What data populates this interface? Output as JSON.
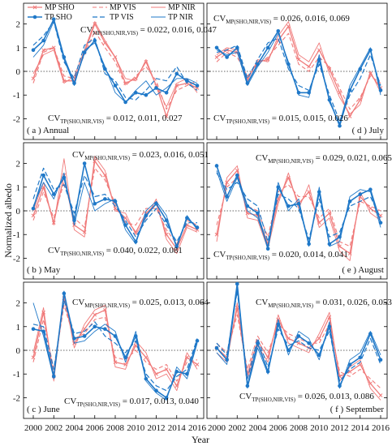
{
  "figure": {
    "ylabel": "Normalized albedo",
    "xlabel": "Year",
    "legend": {
      "mp_sho": "MP SHO",
      "mp_vis": "MP VIS",
      "mp_nir": "MP NIR",
      "tp_sho": "TP SHO",
      "tp_vis": "TP VIS",
      "tp_nir": "TP NIR"
    },
    "x_ticks": [
      "2000",
      "2002",
      "2004",
      "2006",
      "2008",
      "2010",
      "2012",
      "2014",
      "2016"
    ],
    "y_ticks": [
      "-2",
      "-1",
      "0",
      "1",
      "2"
    ],
    "colors": {
      "mp": "#f07b7b",
      "tp": "#1f78c8",
      "zero_line": "#333333"
    },
    "panels": [
      {
        "label": "( a ) Annual",
        "cv_mp": "= 0.022, 0.016, 0.047",
        "cv_tp": "= 0.012, 0.011, 0.027"
      },
      {
        "label": "( d ) July",
        "cv_mp": "= 0.026, 0.016, 0.069",
        "cv_tp": "= 0.015, 0.015, 0.026"
      },
      {
        "label": "( b ) May",
        "cv_mp": "= 0.023, 0.016, 0.051",
        "cv_tp": "= 0.040, 0.022, 0.081"
      },
      {
        "label": "( e ) August",
        "cv_mp": "= 0.029, 0.021, 0.065",
        "cv_tp": "= 0.020, 0.014, 0.041"
      },
      {
        "label": "( c ) June",
        "cv_mp": "= 0.025, 0.013, 0.064",
        "cv_tp": "= 0.017, 0.013, 0.040"
      },
      {
        "label": "( f ) September",
        "cv_mp": "= 0.031, 0.026, 0.053",
        "cv_tp": "= 0.026, 0.013, 0.086"
      }
    ]
  },
  "chart_data": [
    {
      "type": "line",
      "title": "( a ) Annual",
      "x": [
        2000,
        2001,
        2002,
        2003,
        2004,
        2005,
        2006,
        2007,
        2008,
        2009,
        2010,
        2011,
        2012,
        2013,
        2014,
        2015,
        2016
      ],
      "ylim": [
        -2.6,
        2.6
      ],
      "series": [
        {
          "name": "MP SHO",
          "values": [
            -0.3,
            0.9,
            1.0,
            -0.4,
            -0.4,
            0.8,
            2.0,
            1.2,
            0.6,
            -0.5,
            -0.3,
            0.4,
            -0.6,
            -1.9,
            -0.6,
            -0.5,
            -0.7
          ]
        },
        {
          "name": "MP VIS",
          "values": [
            -0.5,
            0.8,
            1.0,
            -0.2,
            -0.3,
            0.7,
            1.7,
            1.0,
            0.4,
            -0.6,
            -0.2,
            0.2,
            -0.4,
            -1.6,
            -0.8,
            -0.6,
            -0.4
          ]
        },
        {
          "name": "MP NIR",
          "values": [
            -0.1,
            0.7,
            0.9,
            -0.5,
            -0.2,
            0.9,
            2.1,
            1.3,
            0.6,
            -0.3,
            -0.4,
            0.5,
            -0.6,
            -1.5,
            -0.5,
            -0.3,
            -0.9
          ]
        },
        {
          "name": "TP SHO",
          "values": [
            0.9,
            1.3,
            2.2,
            0.6,
            -0.5,
            0.8,
            1.3,
            0.1,
            -0.6,
            -1.3,
            -0.9,
            -1.0,
            -0.7,
            -0.9,
            -0.1,
            -0.4,
            -0.6
          ]
        },
        {
          "name": "TP VIS",
          "values": [
            1.1,
            1.5,
            2.1,
            0.4,
            -0.3,
            1.1,
            1.4,
            -0.1,
            -0.4,
            -1.1,
            -1.2,
            -0.8,
            -0.3,
            -0.4,
            0.2,
            -0.5,
            -0.8
          ]
        },
        {
          "name": "TP NIR",
          "values": [
            0.6,
            1.1,
            2.1,
            0.5,
            -0.6,
            0.9,
            1.2,
            0.2,
            -0.9,
            -1.3,
            -0.8,
            -0.4,
            -1.0,
            -0.7,
            -0.3,
            -0.3,
            -0.5
          ]
        }
      ]
    },
    {
      "type": "line",
      "title": "( d ) July",
      "x": [
        2000,
        2001,
        2002,
        2003,
        2004,
        2005,
        2006,
        2007,
        2008,
        2009,
        2010,
        2011,
        2012,
        2013,
        2014,
        2015,
        2016
      ],
      "ylim": [
        -2.6,
        2.6
      ],
      "series": [
        {
          "name": "MP SHO",
          "values": [
            0.6,
            0.9,
            0.8,
            -0.3,
            0.4,
            0.5,
            1.3,
            1.9,
            0.5,
            0.2,
            0.9,
            0.1,
            -0.9,
            -1.9,
            -1.2,
            -0.1,
            -0.7
          ]
        },
        {
          "name": "MP VIS",
          "values": [
            0.4,
            0.8,
            0.6,
            -0.2,
            0.3,
            0.6,
            1.1,
            1.6,
            0.3,
            0.0,
            0.6,
            0.2,
            -0.7,
            -1.6,
            -1.1,
            -0.2,
            -0.5
          ]
        },
        {
          "name": "MP NIR",
          "values": [
            0.7,
            1.0,
            0.9,
            -0.4,
            0.5,
            0.4,
            1.5,
            2.1,
            0.7,
            0.4,
            1.2,
            -0.1,
            -1.1,
            -1.8,
            -1.4,
            0.0,
            -0.9
          ]
        },
        {
          "name": "TP SHO",
          "values": [
            1.0,
            0.6,
            1.0,
            -0.5,
            0.3,
            1.0,
            1.7,
            0.3,
            -0.9,
            -0.9,
            0.5,
            -1.2,
            -2.3,
            -0.8,
            0.1,
            0.9,
            -0.8
          ]
        },
        {
          "name": "TP VIS",
          "values": [
            0.8,
            0.9,
            1.1,
            -0.3,
            0.5,
            1.2,
            1.4,
            0.1,
            -0.6,
            -0.8,
            0.3,
            -1.0,
            -2.1,
            -1.0,
            -0.3,
            0.7,
            -0.6
          ]
        },
        {
          "name": "TP NIR",
          "values": [
            0.9,
            0.7,
            0.8,
            -0.6,
            0.2,
            0.8,
            1.6,
            0.4,
            -1.0,
            -1.1,
            0.7,
            -1.3,
            -2.2,
            -0.6,
            0.2,
            1.0,
            -1.0
          ]
        }
      ]
    },
    {
      "type": "line",
      "title": "( b ) May",
      "x": [
        2000,
        2001,
        2002,
        2003,
        2004,
        2005,
        2006,
        2007,
        2008,
        2009,
        2010,
        2011,
        2012,
        2013,
        2014,
        2015,
        2016
      ],
      "ylim": [
        -2.6,
        2.6
      ],
      "series": [
        {
          "name": "MP SHO",
          "values": [
            -0.2,
            1.0,
            -0.5,
            1.5,
            -0.6,
            -0.9,
            2.1,
            1.5,
            0.1,
            -0.3,
            -0.9,
            -0.1,
            0.3,
            -1.0,
            -1.6,
            -0.6,
            -0.8
          ]
        },
        {
          "name": "MP VIS",
          "values": [
            -0.4,
            0.8,
            -0.3,
            1.2,
            -0.3,
            -0.7,
            1.8,
            1.3,
            0.3,
            -0.5,
            -0.6,
            0.1,
            0.1,
            -0.8,
            -1.4,
            -0.4,
            -0.6
          ]
        },
        {
          "name": "MP NIR",
          "values": [
            0.0,
            1.2,
            -0.6,
            2.2,
            -0.8,
            -1.1,
            2.3,
            1.7,
            0.0,
            -0.1,
            -1.0,
            -0.3,
            0.5,
            -1.2,
            -1.8,
            -0.7,
            -0.9
          ]
        },
        {
          "name": "TP SHO",
          "values": [
            0.1,
            1.5,
            0.7,
            1.4,
            -0.4,
            2.0,
            0.3,
            0.5,
            0.4,
            -0.6,
            -1.3,
            -0.2,
            0.3,
            -0.4,
            -1.5,
            -0.3,
            -0.7
          ]
        },
        {
          "name": "TP VIS",
          "values": [
            0.5,
            1.8,
            0.9,
            1.1,
            -0.1,
            1.5,
            0.6,
            0.7,
            0.2,
            -0.4,
            -1.1,
            -0.4,
            0.1,
            -0.6,
            -1.3,
            -0.5,
            -0.5
          ]
        },
        {
          "name": "TP NIR",
          "values": [
            0.2,
            1.2,
            0.5,
            1.6,
            -0.6,
            1.2,
            0.0,
            0.3,
            0.5,
            -0.8,
            -1.4,
            0.0,
            0.4,
            -0.2,
            -1.6,
            -0.2,
            -0.8
          ]
        }
      ]
    },
    {
      "type": "line",
      "title": "( e ) August",
      "x": [
        2000,
        2001,
        2002,
        2003,
        2004,
        2005,
        2006,
        2007,
        2008,
        2009,
        2010,
        2011,
        2012,
        2013,
        2014,
        2015,
        2016
      ],
      "ylim": [
        -2.6,
        2.6
      ],
      "series": [
        {
          "name": "MP SHO",
          "values": [
            -1.0,
            1.2,
            1.7,
            -0.1,
            -0.2,
            -1.4,
            0.5,
            1.4,
            0.3,
            0.8,
            -0.5,
            -0.1,
            -1.5,
            -1.8,
            0.6,
            0.1,
            -0.2
          ]
        },
        {
          "name": "MP VIS",
          "values": [
            -0.6,
            1.0,
            1.4,
            0.2,
            0.0,
            -1.1,
            0.8,
            1.1,
            0.6,
            0.6,
            -0.3,
            0.1,
            -1.3,
            -1.5,
            0.4,
            0.2,
            0.0
          ]
        },
        {
          "name": "MP NIR",
          "values": [
            -1.3,
            1.4,
            1.9,
            -0.3,
            -0.4,
            -1.6,
            0.3,
            1.6,
            0.1,
            1.1,
            -0.7,
            -0.3,
            -1.7,
            -2.1,
            0.8,
            -0.1,
            -0.4
          ]
        },
        {
          "name": "TP SHO",
          "values": [
            1.9,
            0.6,
            1.5,
            0.2,
            -0.1,
            -1.6,
            1.0,
            0.2,
            0.3,
            -1.4,
            0.8,
            -1.4,
            -1.1,
            0.4,
            0.7,
            0.9,
            -0.5
          ]
        },
        {
          "name": "TP VIS",
          "values": [
            1.6,
            0.9,
            1.2,
            0.5,
            0.2,
            -1.3,
            0.7,
            0.5,
            0.1,
            -1.2,
            0.5,
            -1.1,
            -0.9,
            0.2,
            0.4,
            0.6,
            -0.3
          ]
        },
        {
          "name": "TP NIR",
          "values": [
            1.7,
            0.4,
            1.4,
            0.0,
            -0.3,
            -1.5,
            1.2,
            0.0,
            0.5,
            -1.5,
            1.0,
            -1.5,
            -1.3,
            0.6,
            0.9,
            0.8,
            -0.7
          ]
        }
      ]
    },
    {
      "type": "line",
      "title": "( c ) June",
      "x": [
        2000,
        2001,
        2002,
        2003,
        2004,
        2005,
        2006,
        2007,
        2008,
        2009,
        2010,
        2011,
        2012,
        2013,
        2014,
        2015,
        2016
      ],
      "ylim": [
        -2.6,
        2.6
      ],
      "series": [
        {
          "name": "MP SHO",
          "values": [
            -0.3,
            1.6,
            -1.1,
            2.2,
            0.3,
            0.9,
            1.5,
            1.7,
            -0.5,
            -0.6,
            0.2,
            -0.3,
            -1.0,
            -0.8,
            -1.5,
            -0.3,
            -0.6
          ]
        },
        {
          "name": "MP VIS",
          "values": [
            -0.5,
            1.3,
            -0.8,
            1.9,
            0.5,
            0.7,
            1.3,
            1.4,
            -0.3,
            -0.4,
            0.0,
            -0.5,
            -0.8,
            -0.6,
            -1.3,
            -0.5,
            -0.4
          ]
        },
        {
          "name": "MP NIR",
          "values": [
            -0.1,
            1.8,
            -1.3,
            2.4,
            0.1,
            1.1,
            1.7,
            1.9,
            -0.7,
            -0.8,
            0.4,
            -0.1,
            -1.2,
            -1.0,
            -1.7,
            -0.1,
            -0.8
          ]
        },
        {
          "name": "TP SHO",
          "values": [
            0.9,
            0.8,
            -1.1,
            2.4,
            0.5,
            0.6,
            1.0,
            0.9,
            0.6,
            -0.3,
            0.6,
            -1.2,
            -1.7,
            -2.0,
            -0.9,
            -1.0,
            0.4
          ]
        },
        {
          "name": "TP VIS",
          "values": [
            1.1,
            1.0,
            -0.8,
            2.1,
            0.7,
            0.8,
            1.2,
            0.6,
            0.3,
            -0.1,
            0.4,
            -1.0,
            -1.5,
            -1.7,
            -1.1,
            -0.8,
            0.5
          ]
        },
        {
          "name": "TP NIR",
          "values": [
            2.0,
            0.6,
            -1.2,
            2.5,
            0.3,
            0.4,
            0.8,
            1.1,
            0.8,
            -0.5,
            0.8,
            -1.3,
            -1.8,
            -2.1,
            -0.7,
            -1.2,
            0.3
          ]
        }
      ]
    },
    {
      "type": "line",
      "title": "( f ) September",
      "x": [
        2000,
        2001,
        2002,
        2003,
        2004,
        2005,
        2006,
        2007,
        2008,
        2009,
        2010,
        2011,
        2012,
        2013,
        2014,
        2015,
        2016
      ],
      "ylim": [
        -2.6,
        2.6
      ],
      "series": [
        {
          "name": "MP SHO",
          "values": [
            0.1,
            -0.3,
            1.8,
            -1.0,
            0.4,
            -0.3,
            1.3,
            0.5,
            0.3,
            0.1,
            0.5,
            1.4,
            -1.1,
            -0.9,
            -0.6,
            -1.4,
            -1.9
          ]
        },
        {
          "name": "MP VIS",
          "values": [
            0.3,
            -0.1,
            1.5,
            -0.8,
            0.6,
            -0.1,
            1.1,
            0.7,
            0.5,
            0.3,
            0.3,
            1.1,
            -0.9,
            -1.1,
            -0.8,
            -1.2,
            -1.6
          ]
        },
        {
          "name": "MP NIR",
          "values": [
            -0.1,
            -0.5,
            2.0,
            -1.2,
            0.2,
            -0.5,
            1.5,
            0.3,
            0.1,
            -0.1,
            0.7,
            1.6,
            -1.3,
            -0.7,
            -0.4,
            -1.6,
            -2.1
          ]
        },
        {
          "name": "TP SHO",
          "values": [
            0.1,
            -0.4,
            2.8,
            -1.5,
            0.3,
            -0.9,
            1.1,
            0.0,
            0.6,
            0.3,
            -0.2,
            1.0,
            -1.5,
            -0.6,
            -0.3,
            0.7,
            -0.4
          ]
        },
        {
          "name": "TP VIS",
          "values": [
            0.3,
            -0.2,
            2.5,
            -1.2,
            0.5,
            -0.7,
            0.9,
            0.2,
            0.4,
            0.1,
            0.0,
            0.8,
            -1.3,
            -0.8,
            -0.5,
            0.5,
            -0.6
          ]
        },
        {
          "name": "TP NIR",
          "values": [
            -0.1,
            -0.6,
            2.6,
            -1.6,
            0.1,
            -1.0,
            1.3,
            -0.2,
            0.8,
            0.5,
            -0.4,
            1.2,
            -1.6,
            -0.4,
            -0.1,
            0.8,
            -0.2
          ]
        }
      ]
    }
  ]
}
